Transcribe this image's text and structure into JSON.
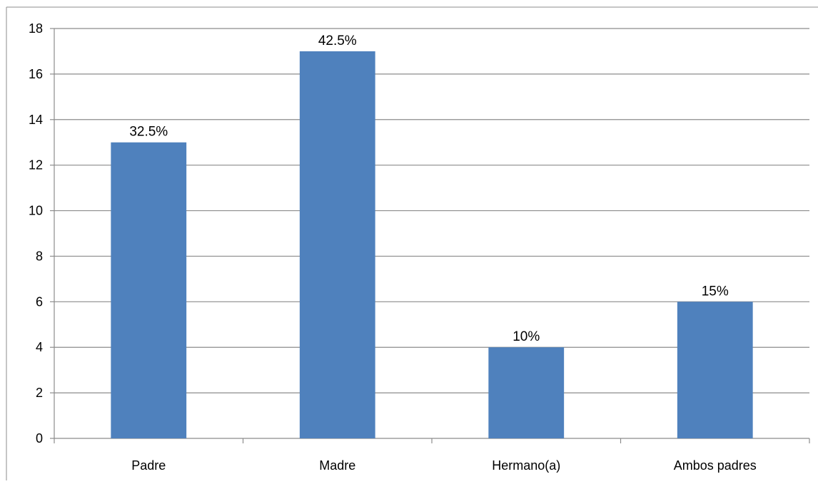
{
  "chart_data": {
    "type": "bar",
    "title": "",
    "xlabel": "",
    "ylabel": "",
    "categories": [
      "Padre",
      "Madre",
      "Hermano(a)",
      "Ambos padres"
    ],
    "values": [
      13,
      17,
      4,
      6
    ],
    "data_labels": [
      "32.5%",
      "42.5%",
      "10%",
      "15%"
    ],
    "ylim": [
      0,
      18
    ],
    "yticks": [
      0,
      2,
      4,
      6,
      8,
      10,
      12,
      14,
      16,
      18
    ],
    "ytick_labels": [
      "0",
      "2",
      "4",
      "6",
      "8",
      "10",
      "12",
      "14",
      "16",
      "18"
    ],
    "grid": true,
    "legend": "none",
    "bar_color": "#4f81bd"
  }
}
